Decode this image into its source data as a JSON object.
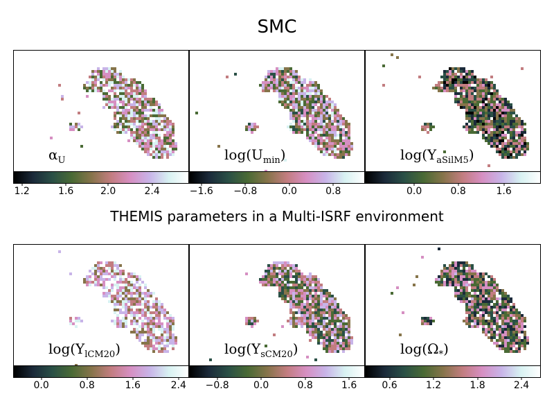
{
  "title": "SMC",
  "subtitle": "THEMIS parameters in a Multi-ISRF environment",
  "colormap": [
    "#000000",
    "#1b2a3a",
    "#2a5046",
    "#4a6a35",
    "#86744a",
    "#c27d80",
    "#d68fc2",
    "#c8b4e8",
    "#d8f2f2",
    "#ffffff"
  ],
  "panels": [
    {
      "id": "alpha",
      "label_main": "α",
      "label_sub": "U",
      "label_paren": false,
      "ticks": [
        "1.2",
        "1.6",
        "2.0",
        "2.4"
      ],
      "tick_pos": [
        0.05,
        0.3,
        0.54,
        0.79
      ],
      "bias": 0.62
    },
    {
      "id": "umin",
      "label_main": "log(U",
      "label_sub": "min",
      "label_paren": true,
      "ticks": [
        "−1.6",
        "−0.8",
        "0.0",
        "0.8"
      ],
      "tick_pos": [
        0.07,
        0.32,
        0.57,
        0.82
      ],
      "bias": 0.55
    },
    {
      "id": "asil",
      "label_main": "log(Y",
      "label_sub": "aSilM5",
      "label_paren": true,
      "ticks": [
        "0.0",
        "0.8",
        "1.6"
      ],
      "tick_pos": [
        0.28,
        0.53,
        0.79
      ],
      "bias": 0.35
    },
    {
      "id": "lcm",
      "label_main": "log(Y",
      "label_sub": "lCM20",
      "label_paren": true,
      "ticks": [
        "0.0",
        "0.8",
        "1.6",
        "2.4"
      ],
      "tick_pos": [
        0.16,
        0.42,
        0.68,
        0.94
      ],
      "bias": 0.7
    },
    {
      "id": "scm",
      "label_main": "log(Y",
      "label_sub": "sCM20",
      "label_paren": true,
      "ticks": [
        "−0.8",
        "0.0",
        "0.8",
        "1.6"
      ],
      "tick_pos": [
        0.16,
        0.41,
        0.66,
        0.91
      ],
      "bias": 0.5
    },
    {
      "id": "omega",
      "label_main": "log(Ω",
      "label_sub": "*",
      "label_paren": true,
      "ticks": [
        "0.6",
        "1.2",
        "1.8",
        "2.4"
      ],
      "tick_pos": [
        0.14,
        0.39,
        0.64,
        0.89
      ],
      "bias": 0.42
    }
  ]
}
